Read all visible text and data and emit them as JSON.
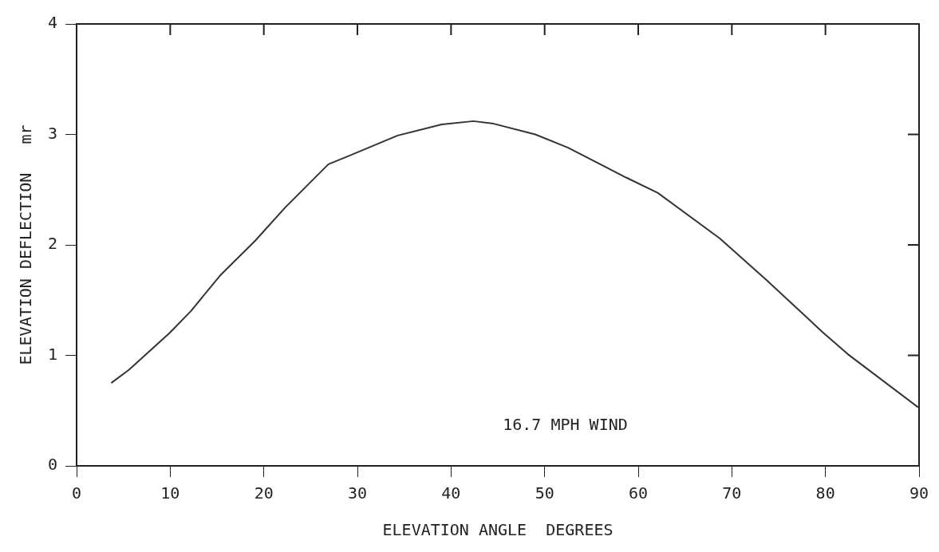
{
  "chart_data": {
    "type": "line",
    "xlabel": "ELEVATION ANGLE  DEGREES",
    "ylabel": "ELEVATION DEFLECTION   mr",
    "x": [
      3.7,
      5.6,
      9.9,
      12.2,
      15.3,
      19.1,
      22.3,
      26.9,
      29.2,
      34.3,
      39,
      42.4,
      44.4,
      49,
      52.5,
      58.7,
      62.1,
      68.7,
      73.6,
      79.7,
      82.4,
      89.9
    ],
    "series": [
      {
        "color": "#333333",
        "values": [
          0.75,
          0.87,
          1.2,
          1.4,
          1.72,
          2.04,
          2.34,
          2.73,
          2.81,
          2.99,
          3.09,
          3.12,
          3.1,
          3.0,
          2.88,
          2.61,
          2.47,
          2.06,
          1.69,
          1.21,
          1.01,
          0.53
        ]
      }
    ],
    "xlim": [
      0,
      90
    ],
    "xticks": [
      0,
      10,
      20,
      30,
      40,
      50,
      60,
      70,
      80,
      90
    ],
    "ylim": [
      0,
      4
    ],
    "yticks": [
      0,
      1,
      2,
      3,
      4
    ],
    "annotations": [
      "16.7 MPH WIND"
    ],
    "grid": false,
    "legend": false,
    "marker": "none",
    "line_style": "solid"
  }
}
